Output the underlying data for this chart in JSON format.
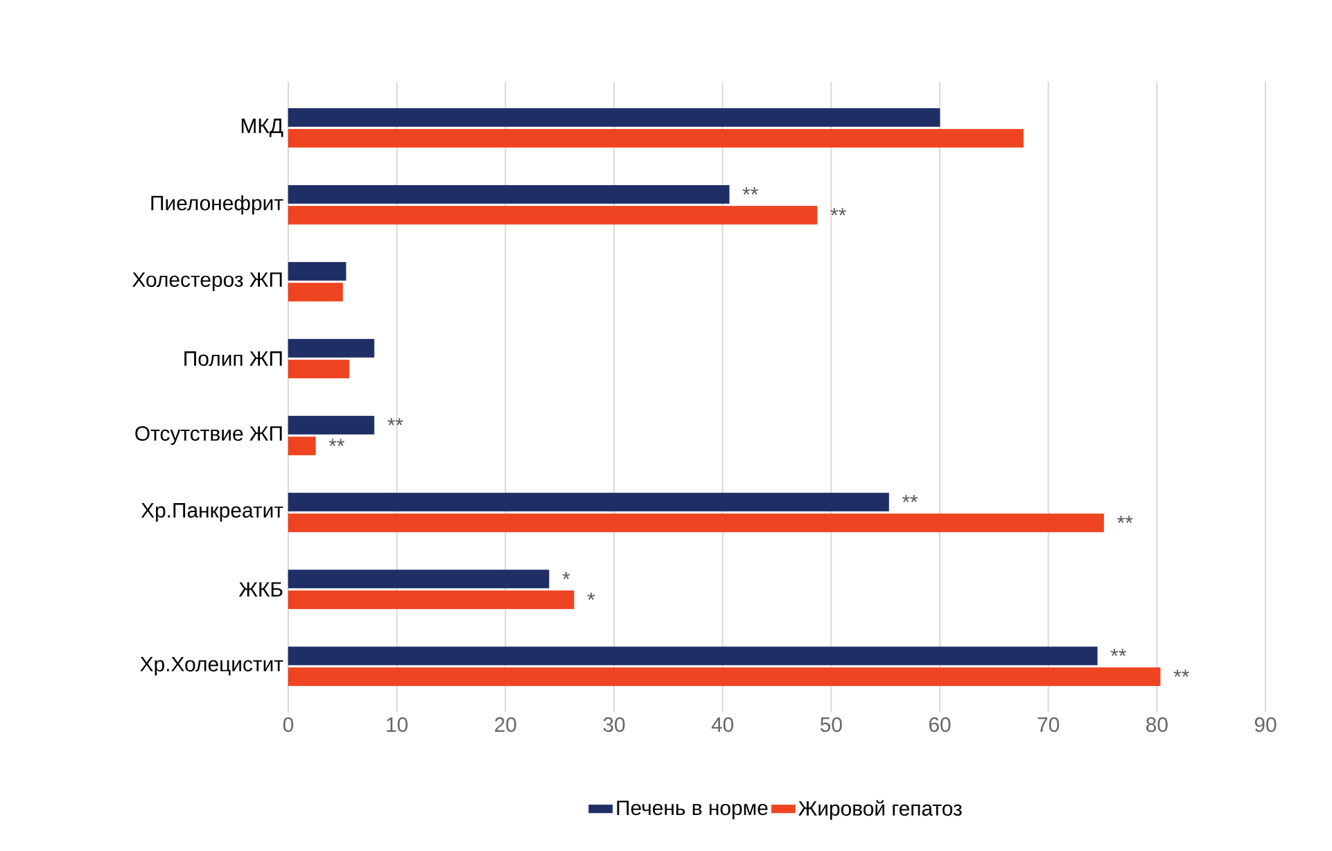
{
  "chart_data": {
    "type": "bar",
    "orientation": "horizontal",
    "categories": [
      "МКД",
      "Пиелонефрит",
      "Холестероз ЖП",
      "Полип ЖП",
      "Отсутствие ЖП",
      "Хр.Панкреатит",
      "ЖКБ",
      "Хр.Холецистит"
    ],
    "series": [
      {
        "name": "Печень в норме",
        "color": "#1f2f66",
        "values": [
          60,
          40.6,
          5.3,
          7.9,
          7.9,
          55.3,
          24,
          74.5
        ]
      },
      {
        "name": "Жировой гепатоз",
        "color": "#ee4422",
        "values": [
          67.7,
          48.7,
          5,
          5.6,
          2.5,
          75.1,
          26.3,
          80.3
        ]
      }
    ],
    "xlim": [
      0,
      90
    ],
    "xticks": [
      0,
      10,
      20,
      30,
      40,
      50,
      60,
      70,
      80,
      90
    ],
    "grid": "x",
    "legend": "bottom",
    "annotations": [
      {
        "text": "**",
        "x": 40.6,
        "y": "Пиелонефрит"
      },
      {
        "text": "**",
        "x": 48.7,
        "y": "Пиелонефрит"
      },
      {
        "text": "**",
        "x": 7.9,
        "y": "Отсутствие ЖП"
      },
      {
        "text": "**",
        "x": 2.5,
        "y": "Отсутствие ЖП"
      },
      {
        "text": "**",
        "x": 55.3,
        "y": "Хр.Панкреатит"
      },
      {
        "text": "**",
        "x": 75.1,
        "y": "Хр.Панкреатит"
      },
      {
        "text": "*",
        "x": 24,
        "y": "ЖКБ"
      },
      {
        "text": "*",
        "x": 26.3,
        "y": "ЖКБ"
      },
      {
        "text": "**",
        "x": 74.5,
        "y": "Хр.Холецистит"
      },
      {
        "text": "**",
        "x": 80.3,
        "y": "Хр.Холецистит"
      }
    ]
  }
}
